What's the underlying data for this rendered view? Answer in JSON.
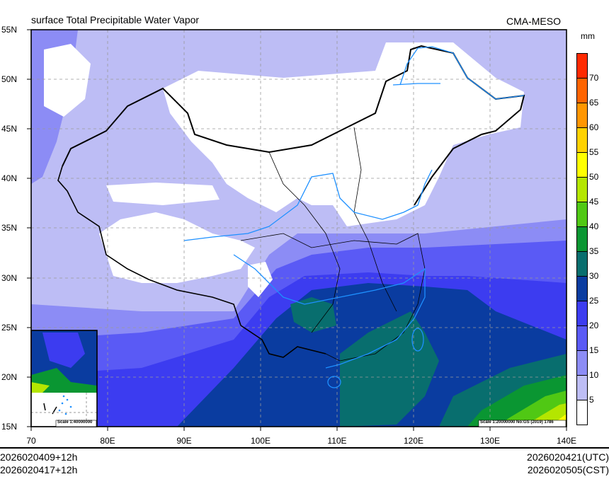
{
  "title": "surface Total Precipitable Water Vapor",
  "model": "CMA-MESO",
  "units": "mm",
  "lat_labels": [
    "55N",
    "50N",
    "45N",
    "40N",
    "35N",
    "30N",
    "25N",
    "20N",
    "15N"
  ],
  "lon_labels": [
    "70",
    "80E",
    "90E",
    "100E",
    "110E",
    "120E",
    "130E",
    "140E"
  ],
  "colorbar": {
    "labels": [
      "70",
      "65",
      "60",
      "55",
      "50",
      "45",
      "40",
      "35",
      "30",
      "25",
      "20",
      "15",
      "10",
      "5"
    ],
    "colors": [
      "#ff2a00",
      "#ff6400",
      "#ff9600",
      "#ffd200",
      "#ffff00",
      "#b4e600",
      "#50c814",
      "#0a9632",
      "#086e6e",
      "#0a3ca0",
      "#3c3cf0",
      "#5a5af5",
      "#8c8cf5",
      "#bdbdf5",
      "#ffffff"
    ]
  },
  "scale_main": "Scale 1:20000000 No:GS (2019) 1786",
  "scale_inset": "Scale 1:40000000",
  "footer": {
    "init_1": "2026020409+12h",
    "init_2": "2026020417+12h",
    "valid_utc": "2026020421(UTC)",
    "valid_cst": "2026020505(CST)"
  }
}
